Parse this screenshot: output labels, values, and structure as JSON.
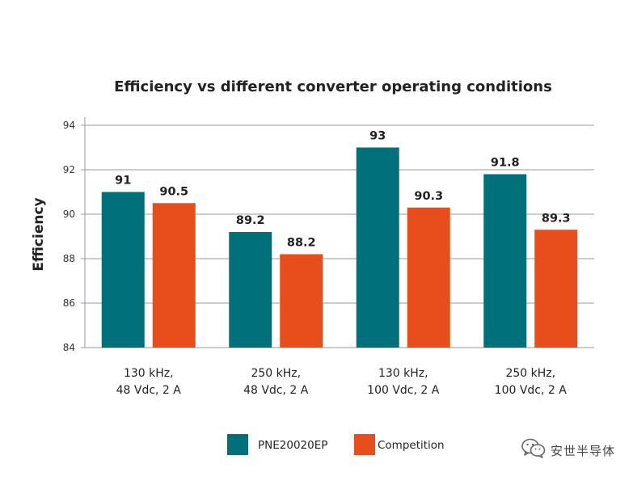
{
  "chart_data": {
    "type": "bar",
    "title": "Efficiency vs different converter operating conditions",
    "xlabel": "",
    "ylabel": "Efficiency",
    "ylim": [
      84,
      94
    ],
    "yticks": [
      84,
      86,
      88,
      90,
      92,
      94
    ],
    "grid": true,
    "legend_position": "bottom",
    "categories": [
      [
        "130 kHz,",
        "48 Vdc, 2 A"
      ],
      [
        "250 kHz,",
        "48 Vdc, 2 A"
      ],
      [
        "130 kHz,",
        "100 Vdc, 2 A"
      ],
      [
        "250 kHz,",
        "100 Vdc, 2 A"
      ]
    ],
    "series": [
      {
        "name": "PNE20020EP",
        "color": "#00707a",
        "values": [
          91,
          89.2,
          93,
          91.8
        ],
        "labels": [
          "91",
          "89.2",
          "93",
          "91.8"
        ]
      },
      {
        "name": "Competition",
        "color": "#e84e1b",
        "values": [
          90.5,
          88.2,
          90.3,
          89.3
        ],
        "labels": [
          "90.5",
          "88.2",
          "90.3",
          "89.3"
        ]
      }
    ]
  },
  "watermark": {
    "text": "安世半导体",
    "icon": "wechat-icon"
  }
}
